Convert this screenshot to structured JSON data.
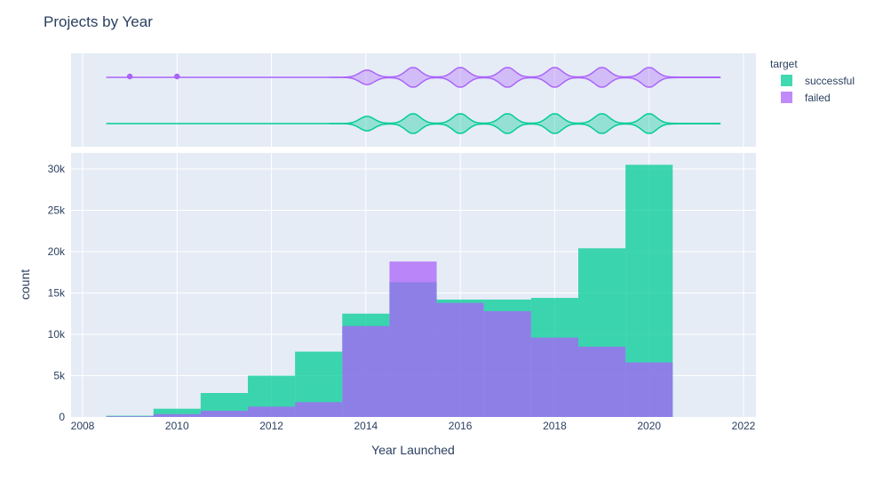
{
  "chart_data": {
    "type": "bar",
    "title": "Projects by Year",
    "xlabel": "Year Launched",
    "ylabel": "count",
    "xlim": [
      2008,
      2022
    ],
    "ylim": [
      0,
      31500
    ],
    "x_ticks": [
      2008,
      2010,
      2012,
      2014,
      2016,
      2018,
      2020,
      2022
    ],
    "y_ticks": [
      0,
      5000,
      10000,
      15000,
      20000,
      25000,
      30000
    ],
    "y_tick_labels": [
      "0",
      "5k",
      "10k",
      "15k",
      "20k",
      "25k",
      "30k"
    ],
    "grid": true,
    "legend_title": "target",
    "legend_position": "top-right",
    "bin_starts": [
      2008.5,
      2009.5,
      2010.5,
      2011.5,
      2012.5,
      2013.5,
      2014.5,
      2015.5,
      2016.5,
      2017.5,
      2018.5,
      2019.5
    ],
    "bin_width": 1,
    "series": [
      {
        "name": "successful",
        "color": "#00cc96",
        "values": [
          150,
          1000,
          2900,
          5000,
          7900,
          12500,
          16300,
          14200,
          14200,
          14400,
          20400,
          30500
        ]
      },
      {
        "name": "failed",
        "color": "#ab63fa",
        "values": [
          80,
          350,
          750,
          1250,
          1800,
          11000,
          18800,
          13800,
          12800,
          9600,
          8500,
          6600
        ]
      }
    ],
    "violin": {
      "type": "violin",
      "series": [
        {
          "name": "failed",
          "x_range": [
            2008.5,
            2021.5
          ],
          "modes": [
            2014,
            2015,
            2016,
            2017,
            2018,
            2019,
            2020
          ],
          "outliers": [
            2009,
            2010
          ]
        },
        {
          "name": "successful",
          "x_range": [
            2008.5,
            2021.5
          ],
          "modes": [
            2014,
            2015,
            2016,
            2017,
            2018,
            2019,
            2020
          ]
        }
      ]
    }
  }
}
